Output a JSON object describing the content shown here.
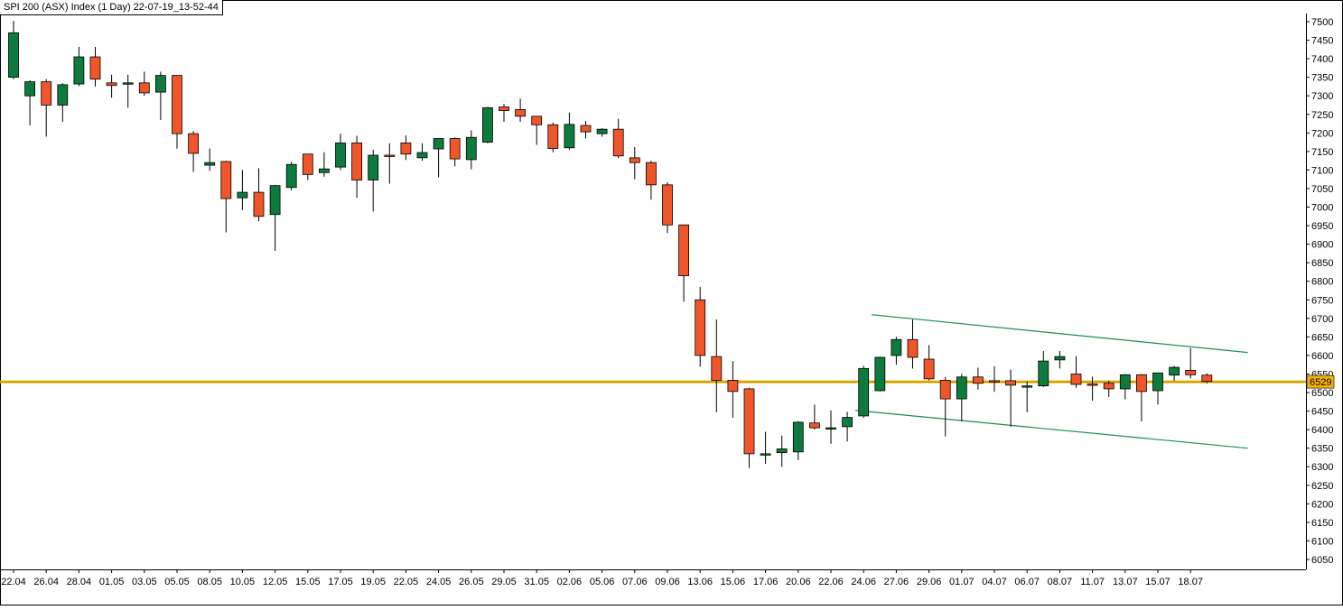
{
  "header": {
    "title": "SPI 200 (ASX) Index (1 Day) 22-07-19_13-52-44"
  },
  "colors": {
    "up": "#0d7a3e",
    "down": "#f0562a",
    "outline": "#000000",
    "level_line": "#f5b400",
    "channel_line": "#1b8e4e",
    "price_tag_bg": "#f5b400"
  },
  "chart_data": {
    "type": "candlestick",
    "title": "SPI 200 (ASX) Index (1 Day) 22-07-19_13-52-44",
    "ylim": [
      6025,
      7520
    ],
    "yticks": [
      7500,
      7450,
      7400,
      7350,
      7300,
      7250,
      7200,
      7150,
      7100,
      7050,
      7000,
      6950,
      6900,
      6850,
      6800,
      6750,
      6700,
      6650,
      6600,
      6550,
      6500,
      6450,
      6400,
      6350,
      6300,
      6250,
      6200,
      6150,
      6100,
      6050
    ],
    "xtick_labels": [
      "22.04",
      "26.04",
      "28.04",
      "01.05",
      "03.05",
      "05.05",
      "08.05",
      "10.05",
      "12.05",
      "15.05",
      "17.05",
      "19.05",
      "22.05",
      "24.05",
      "26.05",
      "29.05",
      "31.05",
      "02.06",
      "05.06",
      "07.06",
      "09.06",
      "13.06",
      "15.06",
      "17.06",
      "20.06",
      "22.06",
      "24.06",
      "27.06",
      "29.06",
      "01.07",
      "04.07",
      "06.07",
      "08.07",
      "11.07",
      "13.07",
      "15.07",
      "18.07"
    ],
    "grid": false,
    "current_price": 6529,
    "level_line": 6529,
    "channel": {
      "upper": {
        "start_index": 52.5,
        "start_value": 6710,
        "end_index": 75.5,
        "end_value": 6608
      },
      "lower": {
        "start_index": 51.5,
        "start_value": 6452,
        "end_index": 75.5,
        "end_value": 6350
      }
    },
    "candles": [
      {
        "o": 7350,
        "h": 7502,
        "l": 7345,
        "c": 7470
      },
      {
        "o": 7300,
        "h": 7342,
        "l": 7220,
        "c": 7338
      },
      {
        "o": 7338,
        "h": 7345,
        "l": 7190,
        "c": 7275
      },
      {
        "o": 7275,
        "h": 7334,
        "l": 7230,
        "c": 7330
      },
      {
        "o": 7332,
        "h": 7432,
        "l": 7326,
        "c": 7405
      },
      {
        "o": 7405,
        "h": 7432,
        "l": 7325,
        "c": 7345
      },
      {
        "o": 7335,
        "h": 7357,
        "l": 7295,
        "c": 7328
      },
      {
        "o": 7335,
        "h": 7357,
        "l": 7268,
        "c": 7335
      },
      {
        "o": 7335,
        "h": 7365,
        "l": 7300,
        "c": 7308
      },
      {
        "o": 7310,
        "h": 7365,
        "l": 7235,
        "c": 7355
      },
      {
        "o": 7355,
        "h": 7355,
        "l": 7158,
        "c": 7198
      },
      {
        "o": 7198,
        "h": 7205,
        "l": 7095,
        "c": 7145
      },
      {
        "o": 7113,
        "h": 7158,
        "l": 7098,
        "c": 7120
      },
      {
        "o": 7123,
        "h": 7125,
        "l": 6932,
        "c": 7023
      },
      {
        "o": 7025,
        "h": 7100,
        "l": 6992,
        "c": 7040
      },
      {
        "o": 7040,
        "h": 7105,
        "l": 6962,
        "c": 6975
      },
      {
        "o": 6980,
        "h": 7060,
        "l": 6882,
        "c": 7058
      },
      {
        "o": 7053,
        "h": 7122,
        "l": 7045,
        "c": 7115
      },
      {
        "o": 7143,
        "h": 7143,
        "l": 7073,
        "c": 7088
      },
      {
        "o": 7093,
        "h": 7148,
        "l": 7082,
        "c": 7103
      },
      {
        "o": 7108,
        "h": 7198,
        "l": 7100,
        "c": 7173
      },
      {
        "o": 7173,
        "h": 7192,
        "l": 7025,
        "c": 7073
      },
      {
        "o": 7073,
        "h": 7155,
        "l": 6988,
        "c": 7140
      },
      {
        "o": 7140,
        "h": 7172,
        "l": 7063,
        "c": 7137
      },
      {
        "o": 7173,
        "h": 7193,
        "l": 7127,
        "c": 7143
      },
      {
        "o": 7133,
        "h": 7172,
        "l": 7125,
        "c": 7147
      },
      {
        "o": 7157,
        "h": 7185,
        "l": 7080,
        "c": 7185
      },
      {
        "o": 7185,
        "h": 7188,
        "l": 7110,
        "c": 7130
      },
      {
        "o": 7128,
        "h": 7207,
        "l": 7102,
        "c": 7188
      },
      {
        "o": 7175,
        "h": 7270,
        "l": 7172,
        "c": 7268
      },
      {
        "o": 7270,
        "h": 7278,
        "l": 7230,
        "c": 7260
      },
      {
        "o": 7263,
        "h": 7292,
        "l": 7230,
        "c": 7245
      },
      {
        "o": 7245,
        "h": 7245,
        "l": 7168,
        "c": 7222
      },
      {
        "o": 7222,
        "h": 7228,
        "l": 7148,
        "c": 7158
      },
      {
        "o": 7160,
        "h": 7255,
        "l": 7154,
        "c": 7223
      },
      {
        "o": 7220,
        "h": 7232,
        "l": 7185,
        "c": 7203
      },
      {
        "o": 7198,
        "h": 7213,
        "l": 7190,
        "c": 7210
      },
      {
        "o": 7210,
        "h": 7238,
        "l": 7132,
        "c": 7138
      },
      {
        "o": 7133,
        "h": 7162,
        "l": 7075,
        "c": 7120
      },
      {
        "o": 7120,
        "h": 7125,
        "l": 7020,
        "c": 7060
      },
      {
        "o": 7060,
        "h": 7067,
        "l": 6930,
        "c": 6952
      },
      {
        "o": 6952,
        "h": 6952,
        "l": 6745,
        "c": 6815
      },
      {
        "o": 6750,
        "h": 6785,
        "l": 6570,
        "c": 6600
      },
      {
        "o": 6597,
        "h": 6697,
        "l": 6447,
        "c": 6533
      },
      {
        "o": 6533,
        "h": 6585,
        "l": 6432,
        "c": 6503
      },
      {
        "o": 6510,
        "h": 6513,
        "l": 6297,
        "c": 6335
      },
      {
        "o": 6335,
        "h": 6394,
        "l": 6308,
        "c": 6335
      },
      {
        "o": 6338,
        "h": 6384,
        "l": 6300,
        "c": 6348
      },
      {
        "o": 6340,
        "h": 6423,
        "l": 6318,
        "c": 6420
      },
      {
        "o": 6418,
        "h": 6467,
        "l": 6400,
        "c": 6405
      },
      {
        "o": 6405,
        "h": 6452,
        "l": 6362,
        "c": 6405
      },
      {
        "o": 6408,
        "h": 6448,
        "l": 6368,
        "c": 6433
      },
      {
        "o": 6437,
        "h": 6572,
        "l": 6432,
        "c": 6565
      },
      {
        "o": 6505,
        "h": 6597,
        "l": 6503,
        "c": 6595
      },
      {
        "o": 6600,
        "h": 6650,
        "l": 6575,
        "c": 6643
      },
      {
        "o": 6643,
        "h": 6697,
        "l": 6565,
        "c": 6595
      },
      {
        "o": 6590,
        "h": 6628,
        "l": 6533,
        "c": 6537
      },
      {
        "o": 6533,
        "h": 6542,
        "l": 6382,
        "c": 6483
      },
      {
        "o": 6483,
        "h": 6550,
        "l": 6422,
        "c": 6542
      },
      {
        "o": 6542,
        "h": 6567,
        "l": 6508,
        "c": 6525
      },
      {
        "o": 6532,
        "h": 6571,
        "l": 6502,
        "c": 6530
      },
      {
        "o": 6532,
        "h": 6562,
        "l": 6408,
        "c": 6520
      },
      {
        "o": 6515,
        "h": 6530,
        "l": 6447,
        "c": 6518
      },
      {
        "o": 6518,
        "h": 6612,
        "l": 6515,
        "c": 6585
      },
      {
        "o": 6588,
        "h": 6612,
        "l": 6565,
        "c": 6597
      },
      {
        "o": 6550,
        "h": 6598,
        "l": 6513,
        "c": 6522
      },
      {
        "o": 6523,
        "h": 6543,
        "l": 6478,
        "c": 6522
      },
      {
        "o": 6525,
        "h": 6532,
        "l": 6488,
        "c": 6510
      },
      {
        "o": 6510,
        "h": 6550,
        "l": 6482,
        "c": 6548
      },
      {
        "o": 6548,
        "h": 6550,
        "l": 6422,
        "c": 6503
      },
      {
        "o": 6505,
        "h": 6552,
        "l": 6468,
        "c": 6553
      },
      {
        "o": 6547,
        "h": 6572,
        "l": 6532,
        "c": 6568
      },
      {
        "o": 6560,
        "h": 6620,
        "l": 6538,
        "c": 6548
      },
      {
        "o": 6547,
        "h": 6552,
        "l": 6525,
        "c": 6530
      }
    ]
  }
}
